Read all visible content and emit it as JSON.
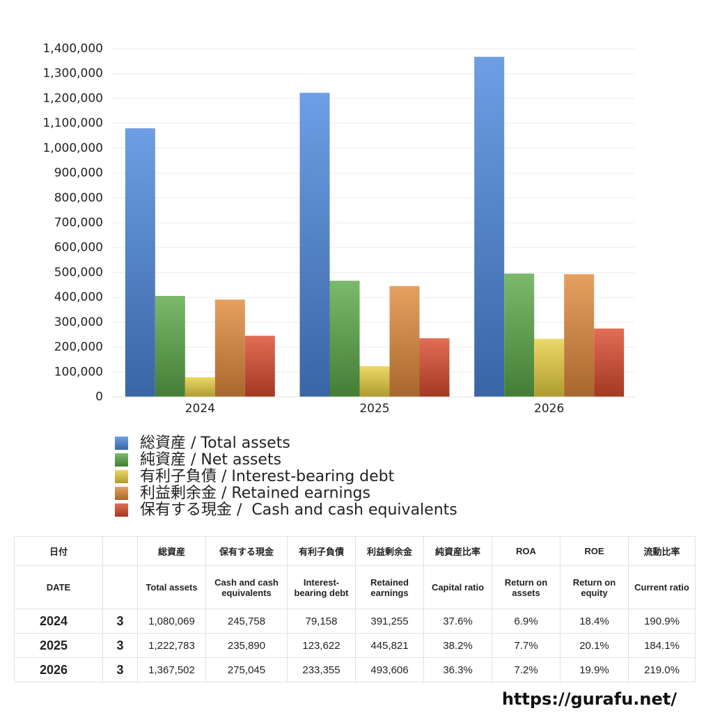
{
  "chart_data": {
    "type": "bar",
    "categories": [
      "2024",
      "2025",
      "2026"
    ],
    "series": [
      {
        "name": "総資産 / Total assets",
        "color": "#4a86dd",
        "values": [
          1080069,
          1222783,
          1367502
        ]
      },
      {
        "name": "純資産 / Net assets",
        "color": "#5aa846",
        "values": [
          406000,
          467000,
          496000
        ]
      },
      {
        "name": "有利子負債 / Interest-bearing debt",
        "color": "#e8cf40",
        "values": [
          79158,
          123622,
          233355
        ]
      },
      {
        "name": "利益剰余金 / Retained earnings",
        "color": "#e0893a",
        "values": [
          391255,
          445821,
          493606
        ]
      },
      {
        "name": "保有する現金 /  Cash and cash equivalents",
        "color": "#da4a2c",
        "values": [
          245758,
          235890,
          275045
        ]
      }
    ],
    "ylim": [
      0,
      1400000
    ],
    "yticks": [
      0,
      {
        "value": 100000,
        "label": "100,000"
      },
      {
        "value": 200000,
        "label": "200,000"
      },
      {
        "value": 300000,
        "label": "300,000"
      },
      {
        "value": 400000,
        "label": "400,000"
      },
      {
        "value": 500000,
        "label": "500,000"
      },
      {
        "value": 600000,
        "label": "600,000"
      },
      {
        "value": 700000,
        "label": "700,000"
      },
      {
        "value": 800000,
        "label": "800,000"
      },
      {
        "value": 900000,
        "label": "900,000"
      },
      {
        "value": 1000000,
        "label": "1,000,000"
      },
      {
        "value": 1100000,
        "label": "1,100,000"
      },
      {
        "value": 1200000,
        "label": "1,200,000"
      },
      {
        "value": 1300000,
        "label": "1,300,000"
      },
      {
        "value": 1400000,
        "label": "1,400,000"
      }
    ],
    "grid": true
  },
  "table": {
    "header_ja": [
      "日付",
      "総資産",
      "保有する現金",
      "有利子負債",
      "利益剰余金",
      "純資産比率",
      "ROA",
      "ROE",
      "流動比率"
    ],
    "header_en": [
      "DATE",
      "Total assets",
      "Cash and cash equivalents",
      "Interest-bearing debt",
      "Retained earnings",
      "Capital ratio",
      "Return on assets",
      "Return on equity",
      "Current ratio"
    ],
    "rows": [
      [
        "2024",
        "3",
        "1,080,069",
        "245,758",
        "79,158",
        "391,255",
        "37.6%",
        "6.9%",
        "18.4%",
        "190.9%"
      ],
      [
        "2025",
        "3",
        "1,222,783",
        "235,890",
        "123,622",
        "445,821",
        "38.2%",
        "7.7%",
        "20.1%",
        "184.1%"
      ],
      [
        "2026",
        "3",
        "1,367,502",
        "275,045",
        "233,355",
        "493,606",
        "36.3%",
        "7.2%",
        "19.9%",
        "219.0%"
      ]
    ]
  },
  "footer": "https://gurafu.net/"
}
